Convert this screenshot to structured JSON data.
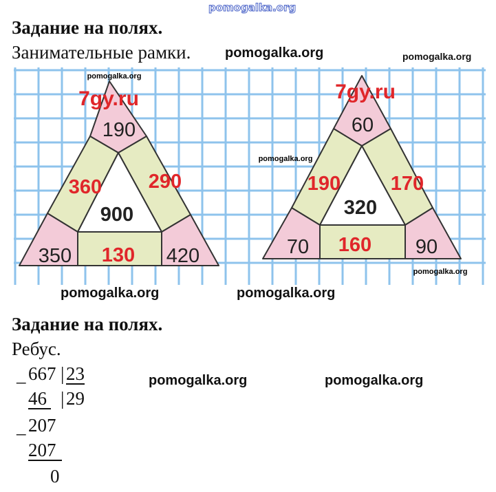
{
  "watermark_top": "pomogalka.org",
  "section1": {
    "heading": "Задание на полях.",
    "subtitle": "Занимательные рамки.",
    "watermark_inline": "pomogalka.org",
    "watermark_right": "pomogalka.org"
  },
  "figure": {
    "grid_color": "#8ec3ec",
    "pink": "#f3cbd8",
    "green": "#e6ebc2",
    "site_label": "7gy.ru",
    "watermark_small": "pomogalka.org",
    "left_triangle": {
      "top": "190",
      "left_side": "360",
      "right_side": "290",
      "center": "900",
      "bottom_left": "350",
      "bottom": "130",
      "bottom_right": "420"
    },
    "right_triangle": {
      "top": "60",
      "left_side": "190",
      "right_side": "170",
      "center": "320",
      "bottom_left": "70",
      "bottom": "160",
      "bottom_right": "90"
    }
  },
  "watermarks_below_figure": [
    "pomogalka.org",
    "pomogalka.org"
  ],
  "section2": {
    "heading": "Задание на полях.",
    "subtitle": "Ребус.",
    "watermarks": [
      "pomogalka.org",
      "pomogalka.org"
    ],
    "division": {
      "dividend": "667",
      "divisor": "23",
      "quotient": "29",
      "step1": "46",
      "remainder1": "207",
      "step2": "207",
      "final": "0",
      "minus": "_",
      "bar": "|"
    }
  }
}
